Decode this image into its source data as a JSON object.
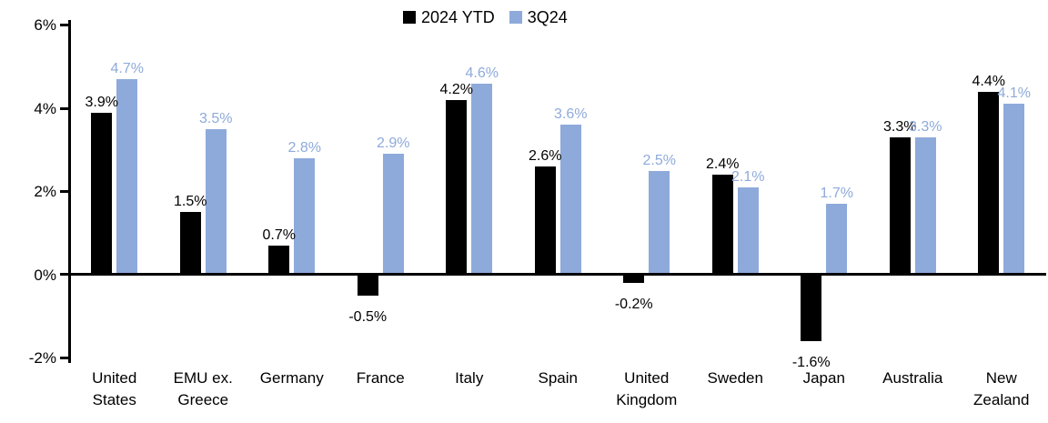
{
  "chart_data": {
    "type": "bar",
    "title": "",
    "legend": {
      "position": "top-center",
      "entries": [
        "2024 YTD",
        "3Q24"
      ]
    },
    "categories": [
      "United States",
      "EMU ex. Greece",
      "Germany",
      "France",
      "Italy",
      "Spain",
      "United Kingdom",
      "Sweden",
      "Japan",
      "Australia",
      "New Zealand"
    ],
    "category_label_lines": [
      [
        "United",
        "States"
      ],
      [
        "EMU ex.",
        "Greece"
      ],
      [
        "Germany"
      ],
      [
        "France"
      ],
      [
        "Italy"
      ],
      [
        "Spain"
      ],
      [
        "United",
        "Kingdom"
      ],
      [
        "Sweden"
      ],
      [
        "Japan"
      ],
      [
        "Australia"
      ],
      [
        "New",
        "Zealand"
      ]
    ],
    "series": [
      {
        "name": "2024 YTD",
        "color": "#000000",
        "label_color": "#000000",
        "values": [
          3.9,
          1.5,
          0.7,
          -0.5,
          4.2,
          2.6,
          -0.2,
          2.4,
          -1.6,
          3.3,
          4.4
        ],
        "labels": [
          "3.9%",
          "1.5%",
          "0.7%",
          "-0.5%",
          "4.2%",
          "2.6%",
          "-0.2%",
          "2.4%",
          "-1.6%",
          "3.3%",
          "4.4%"
        ]
      },
      {
        "name": "3Q24",
        "color": "#8EAADB",
        "label_color": "#8EAADB",
        "values": [
          4.7,
          3.5,
          2.8,
          2.9,
          4.6,
          3.6,
          2.5,
          2.1,
          1.7,
          3.3,
          4.1
        ],
        "labels": [
          "4.7%",
          "3.5%",
          "2.8%",
          "2.9%",
          "4.6%",
          "3.6%",
          "2.5%",
          "2.1%",
          "1.7%",
          "3.3%",
          "4.1%"
        ]
      }
    ],
    "y_axis": {
      "unit": "%",
      "min": -2,
      "max": 6,
      "tick_values": [
        6,
        4,
        2,
        0,
        -2
      ],
      "tick_labels": [
        "6%",
        "4%",
        "2%",
        "0%",
        "-2%"
      ],
      "gridlines": false
    }
  },
  "colors": {
    "background": "#FFFFFF",
    "axis": "#000000",
    "bar_2024_ytd": "#000000",
    "bar_3q24": "#8EAADB"
  }
}
